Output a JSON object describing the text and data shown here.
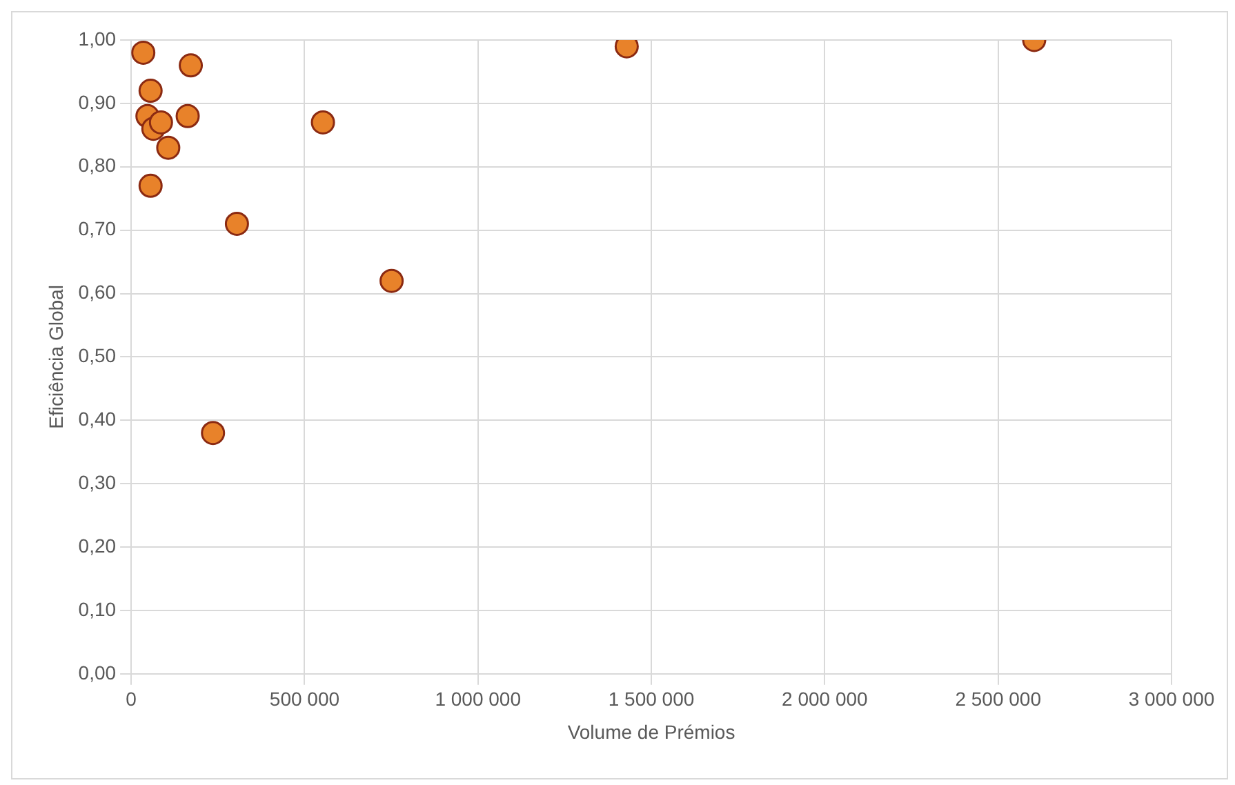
{
  "chart_data": {
    "type": "scatter",
    "xlabel": "Volume de Prémios",
    "ylabel": "Eficiência Global",
    "x": [
      35000,
      172000,
      56000,
      47000,
      64000,
      86000,
      163000,
      107000,
      56000,
      305000,
      553000,
      751000,
      236000,
      1429000,
      2604000
    ],
    "values": [
      0.98,
      0.96,
      0.92,
      0.88,
      0.86,
      0.87,
      0.88,
      0.83,
      0.77,
      0.71,
      0.87,
      0.62,
      0.38,
      0.99,
      1.0
    ],
    "color": "#e8822a",
    "marker": "circle",
    "grid": true,
    "legend": false,
    "xlim": [
      0,
      3000000
    ],
    "xticks": [
      {
        "value": 0,
        "label": "0"
      },
      {
        "value": 500000,
        "label": "500 000"
      },
      {
        "value": 1000000,
        "label": "1 000 000"
      },
      {
        "value": 1500000,
        "label": "1 500 000"
      },
      {
        "value": 2000000,
        "label": "2 000 000"
      },
      {
        "value": 2500000,
        "label": "2 500 000"
      },
      {
        "value": 3000000,
        "label": "3 000 000"
      }
    ],
    "ylim": [
      0,
      1
    ],
    "yticks": [
      {
        "value": 0,
        "label": "0,00"
      },
      {
        "value": 0.1,
        "label": "0,10"
      },
      {
        "value": 0.2,
        "label": "0,20"
      },
      {
        "value": 0.3,
        "label": "0,30"
      },
      {
        "value": 0.4,
        "label": "0,40"
      },
      {
        "value": 0.5,
        "label": "0,50"
      },
      {
        "value": 0.6,
        "label": "0,60"
      },
      {
        "value": 0.7,
        "label": "0,70"
      },
      {
        "value": 0.8,
        "label": "0,80"
      },
      {
        "value": 0.9,
        "label": "0,90"
      },
      {
        "value": 1,
        "label": "1,00"
      }
    ]
  }
}
